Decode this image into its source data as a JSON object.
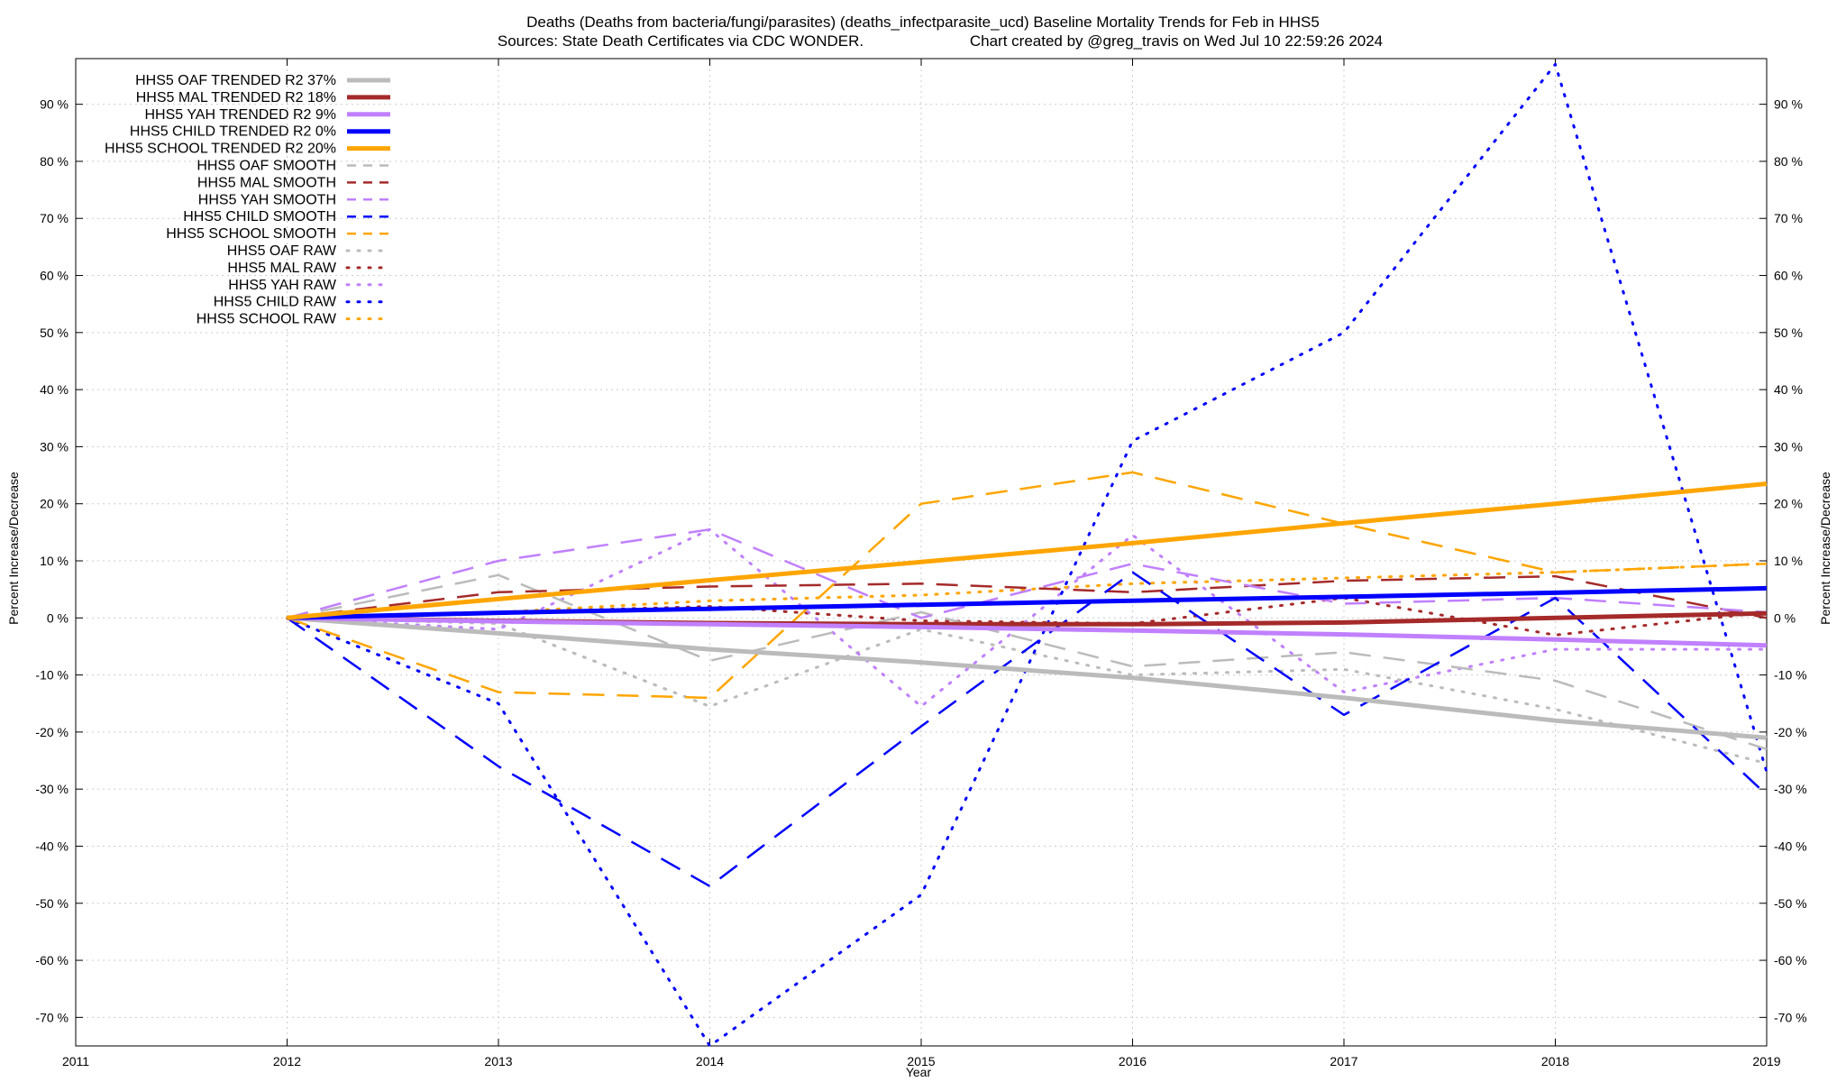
{
  "chart_data": {
    "type": "line",
    "title_line1": "Deaths (Deaths from bacteria/fungi/parasites) (deaths_infectparasite_ucd)  Baseline Mortality Trends for Feb in HHS5",
    "title_line2_left": "Sources: State Death Certificates via CDC WONDER.",
    "title_line2_right": "Chart created by @greg_travis on Wed Jul 10 22:59:26 2024",
    "xlabel": "Year",
    "ylabel_left": "Percent Increase/Decrease",
    "ylabel_right": "Percent Increase/Decrease",
    "xlim": [
      2011,
      2019
    ],
    "ylim": [
      -75,
      98
    ],
    "x_ticks": [
      "2011",
      "2012",
      "2013",
      "2014",
      "2015",
      "2016",
      "2017",
      "2018",
      "2019"
    ],
    "y_ticks": [
      "-70 %",
      "-60 %",
      "-50 %",
      "-40 %",
      "-30 %",
      "-20 %",
      "-10 %",
      "0 %",
      "10 %",
      "20 %",
      "30 %",
      "40 %",
      "50 %",
      "60 %",
      "70 %",
      "80 %",
      "90 %"
    ],
    "y_tick_values": [
      -70,
      -60,
      -50,
      -40,
      -30,
      -20,
      -10,
      0,
      10,
      20,
      30,
      40,
      50,
      60,
      70,
      80,
      90
    ],
    "grid": true,
    "legend_position": "top-left",
    "series": [
      {
        "name": "HHS5 OAF TRENDED R2  37%",
        "color": "#bbbbbb",
        "style": "solid",
        "width": 5,
        "x": [
          2012,
          2013,
          2014,
          2015,
          2016,
          2017,
          2018,
          2019
        ],
        "y": [
          0,
          -2.7,
          -5.5,
          -7.8,
          -10.5,
          -14,
          -18,
          -21
        ]
      },
      {
        "name": "HHS5 MAL TRENDED R2  18%",
        "color": "#a52a2a",
        "style": "solid",
        "width": 5,
        "x": [
          2012,
          2013,
          2014,
          2015,
          2016,
          2017,
          2018,
          2019
        ],
        "y": [
          0,
          -0.5,
          -0.9,
          -1.1,
          -1.1,
          -0.8,
          0,
          0.8
        ]
      },
      {
        "name": "HHS5 YAH TRENDED R2   9%",
        "color": "#c080ff",
        "style": "solid",
        "width": 5,
        "x": [
          2012,
          2013,
          2014,
          2015,
          2016,
          2017,
          2018,
          2019
        ],
        "y": [
          0,
          -0.6,
          -1.1,
          -1.6,
          -2.2,
          -2.9,
          -3.8,
          -4.8
        ]
      },
      {
        "name": "HHS5 CHILD TRENDED R2   0%",
        "color": "#0000ff",
        "style": "solid",
        "width": 5,
        "x": [
          2012,
          2013,
          2014,
          2015,
          2016,
          2017,
          2018,
          2019
        ],
        "y": [
          0,
          0.9,
          1.6,
          2.3,
          3.0,
          3.7,
          4.4,
          5.2
        ]
      },
      {
        "name": "HHS5 SCHOOL TRENDED R2  20%",
        "color": "#ffa500",
        "style": "solid",
        "width": 5,
        "x": [
          2012,
          2013,
          2014,
          2015,
          2016,
          2017,
          2018,
          2019
        ],
        "y": [
          0,
          3.3,
          6.6,
          9.8,
          13.1,
          16.6,
          20,
          23.5
        ]
      },
      {
        "name": "HHS5 OAF SMOOTH",
        "color": "#bbbbbb",
        "style": "dash",
        "width": 2.5,
        "x": [
          2012,
          2013,
          2014,
          2015,
          2016,
          2017,
          2018,
          2019
        ],
        "y": [
          0,
          7.5,
          -7.5,
          1,
          -8.5,
          -6,
          -11,
          -23
        ]
      },
      {
        "name": "HHS5 MAL SMOOTH",
        "color": "#a52a2a",
        "style": "dash",
        "width": 2.5,
        "x": [
          2012,
          2013,
          2014,
          2015,
          2016,
          2017,
          2018,
          2019
        ],
        "y": [
          0,
          4.5,
          5.5,
          6,
          4.5,
          6.5,
          7.3,
          0
        ]
      },
      {
        "name": "HHS5 YAH SMOOTH",
        "color": "#c080ff",
        "style": "dash",
        "width": 2.5,
        "x": [
          2012,
          2013,
          2014,
          2015,
          2016,
          2017,
          2018,
          2019
        ],
        "y": [
          0,
          10,
          15.5,
          0,
          9.5,
          2.5,
          3.5,
          1
        ]
      },
      {
        "name": "HHS5 CHILD SMOOTH",
        "color": "#0000ff",
        "style": "dash",
        "width": 2.5,
        "x": [
          2012,
          2013,
          2014,
          2015,
          2016,
          2017,
          2018,
          2019
        ],
        "y": [
          0,
          -26,
          -47,
          -19,
          8,
          -17,
          3.5,
          -31
        ]
      },
      {
        "name": "HHS5 SCHOOL SMOOTH",
        "color": "#ffa500",
        "style": "dash",
        "width": 2.5,
        "x": [
          2012,
          2013,
          2014,
          2015,
          2016,
          2017,
          2018,
          2019
        ],
        "y": [
          0,
          -13,
          -14,
          20,
          25.5,
          16.5,
          8,
          9.5
        ]
      },
      {
        "name": "HHS5 OAF RAW",
        "color": "#bbbbbb",
        "style": "dot",
        "width": 3,
        "x": [
          2012,
          2013,
          2014,
          2015,
          2016,
          2017,
          2018,
          2019
        ],
        "y": [
          0,
          -1,
          -15.5,
          -2,
          -10,
          -9,
          -16,
          -25.5
        ]
      },
      {
        "name": "HHS5 MAL RAW",
        "color": "#a52a2a",
        "style": "dot",
        "width": 3,
        "x": [
          2012,
          2013,
          2014,
          2015,
          2016,
          2017,
          2018,
          2019
        ],
        "y": [
          0,
          1,
          2,
          -0.5,
          -1,
          3.5,
          -3,
          1
        ]
      },
      {
        "name": "HHS5 YAH RAW",
        "color": "#c080ff",
        "style": "dot",
        "width": 3,
        "x": [
          2012,
          2013,
          2014,
          2015,
          2016,
          2017,
          2018,
          2019
        ],
        "y": [
          0,
          -2,
          15.5,
          -15.5,
          14.5,
          -13,
          -5.5,
          -5.5
        ]
      },
      {
        "name": "HHS5 CHILD RAW",
        "color": "#0000ff",
        "style": "dot",
        "width": 3,
        "x": [
          2012,
          2013,
          2014,
          2015,
          2016,
          2017,
          2018,
          2019
        ],
        "y": [
          0,
          -15,
          -75,
          -48.5,
          31,
          50,
          97,
          -27
        ]
      },
      {
        "name": "HHS5 SCHOOL RAW",
        "color": "#ffa500",
        "style": "dot",
        "width": 3,
        "x": [
          2012,
          2013,
          2014,
          2015,
          2016,
          2017,
          2018,
          2019
        ],
        "y": [
          0,
          1,
          3,
          4,
          6,
          7,
          8,
          9.5
        ]
      }
    ]
  }
}
